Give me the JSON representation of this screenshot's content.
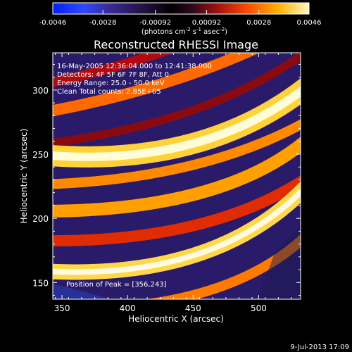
{
  "chart_data": {
    "type": "heatmap",
    "title": "Reconstructed RHESSI Image",
    "xlabel": "Heliocentric X (arcsec)",
    "ylabel": "Heliocentric Y (arcsec)",
    "xlim": [
      343,
      532
    ],
    "ylim": [
      137,
      329
    ],
    "x_ticks": [
      "350",
      "400",
      "450",
      "500"
    ],
    "y_ticks": [
      "150",
      "200",
      "250",
      "300"
    ],
    "x_tick_values": [
      350,
      400,
      450,
      500
    ],
    "y_tick_values": [
      150,
      200,
      250,
      300
    ],
    "colorbar": {
      "min": -0.0046,
      "max": 0.0046,
      "tick_labels": [
        "-0.0046",
        "-0.0028",
        "-0.00092",
        "0.00092",
        "0.0028",
        "0.0046"
      ],
      "tick_values": [
        -0.0046,
        -0.0028,
        -0.00092,
        0.00092,
        0.0028,
        0.0046
      ],
      "unit_text": "(photons cm",
      "unit_sup1": "-2",
      "unit_mid1": " s",
      "unit_sup2": "-1",
      "unit_mid2": " asec",
      "unit_sup3": "-2",
      "unit_end": ")"
    },
    "annotations": [
      "16-May-2005 12:36:04.000 to 12:41:38.000",
      "Detectors: 4F 5F 6F 7F 8F, Att 0",
      "Energy Range: 25.0 - 50.0 keV",
      "Clean    Total counts: 2.85E+05"
    ],
    "peak_label": "Position of Peak = [356,243]",
    "peak_position": [
      356,
      243
    ],
    "grid": false
  },
  "footer": {
    "timestamp": "9-Jul-2013 17:09"
  }
}
